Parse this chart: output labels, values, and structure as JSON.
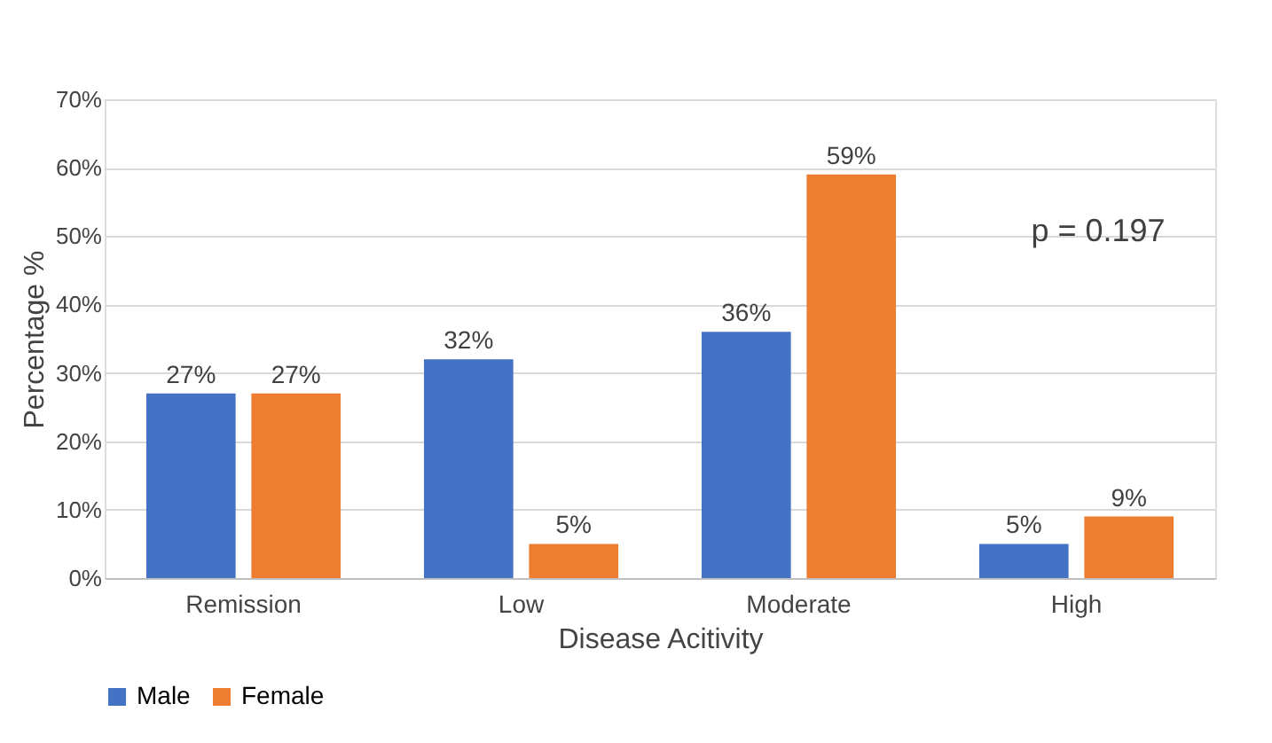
{
  "chart_data": {
    "type": "bar",
    "xlabel": "Disease Acitivity",
    "ylabel": "Percentage %",
    "categories": [
      "Remission",
      "Low",
      "Moderate",
      "High"
    ],
    "series": [
      {
        "name": "Male",
        "color": "#4472c4",
        "values": [
          27,
          32,
          36,
          5
        ],
        "value_labels": [
          "27%",
          "32%",
          "36%",
          "5%"
        ]
      },
      {
        "name": "Female",
        "color": "#ed7d31",
        "values": [
          27,
          5,
          59,
          9
        ],
        "value_labels": [
          "27%",
          "5%",
          "59%",
          "9%"
        ]
      }
    ],
    "ylim": [
      0,
      70
    ],
    "yticks": [
      {
        "value": 0,
        "label": "0%"
      },
      {
        "value": 10,
        "label": "10%"
      },
      {
        "value": 20,
        "label": "20%"
      },
      {
        "value": 30,
        "label": "30%"
      },
      {
        "value": 40,
        "label": "40%"
      },
      {
        "value": 50,
        "label": "50%"
      },
      {
        "value": 60,
        "label": "60%"
      },
      {
        "value": 70,
        "label": "70%"
      }
    ],
    "grid": "y",
    "legend": "bottom",
    "annotations": [
      "p = 0.197"
    ]
  }
}
